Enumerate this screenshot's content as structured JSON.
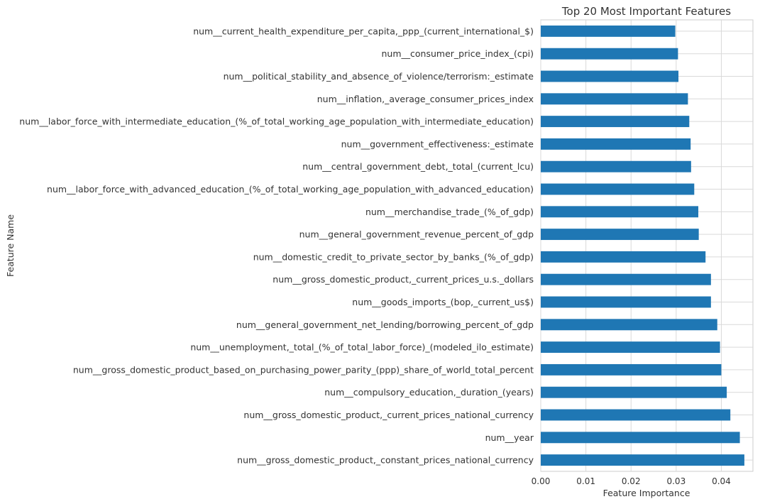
{
  "chart_data": {
    "type": "bar",
    "orientation": "horizontal",
    "title": "Top 20 Most Important Features",
    "xlabel": "Feature Importance",
    "ylabel": "Feature Name",
    "xlim": [
      0,
      0.047
    ],
    "xticks": [
      "0.00",
      "0.01",
      "0.02",
      "0.03",
      "0.04"
    ],
    "grid": true,
    "bar_color": "#1f77b4",
    "categories": [
      "num__current_health_expenditure_per_capita,_ppp_(current_international_$)",
      "num__consumer_price_index_(cpi)",
      "num__political_stability_and_absence_of_violence/terrorism:_estimate",
      "num__inflation,_average_consumer_prices_index",
      "num__labor_force_with_intermediate_education_(%_of_total_working_age_population_with_intermediate_education)",
      "num__government_effectiveness:_estimate",
      "num__central_government_debt,_total_(current_lcu)",
      "num__labor_force_with_advanced_education_(%_of_total_working_age_population_with_advanced_education)",
      "num__merchandise_trade_(%_of_gdp)",
      "num__general_government_revenue_percent_of_gdp",
      "num__domestic_credit_to_private_sector_by_banks_(%_of_gdp)",
      "num__gross_domestic_product,_current_prices_u.s._dollars",
      "num__goods_imports_(bop,_current_us$)",
      "num__general_government_net_lending/borrowing_percent_of_gdp",
      "num__unemployment,_total_(%_of_total_labor_force)_(modeled_ilo_estimate)",
      "num__gross_domestic_product_based_on_purchasing_power_parity_(ppp)_share_of_world_total_percent",
      "num__compulsory_education,_duration_(years)",
      "num__gross_domestic_product,_current_prices_national_currency",
      "num__year",
      "num__gross_domestic_product,_constant_prices_national_currency"
    ],
    "values": [
      0.0298,
      0.0304,
      0.0305,
      0.0326,
      0.0329,
      0.0332,
      0.0333,
      0.034,
      0.0349,
      0.035,
      0.0365,
      0.0377,
      0.0377,
      0.0391,
      0.0397,
      0.04,
      0.0412,
      0.042,
      0.0441,
      0.0451
    ]
  }
}
